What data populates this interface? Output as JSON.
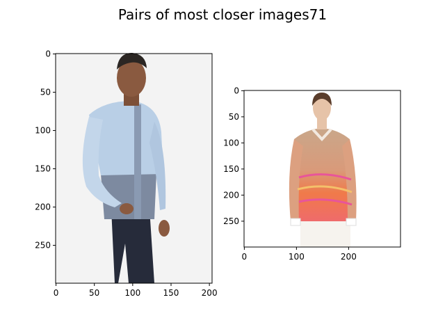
{
  "title": "Pairs of most closer images71",
  "chart_data": [
    {
      "type": "image",
      "image_size": [
        204,
        300
      ],
      "xlim": [
        -0.5,
        203.5
      ],
      "ylim": [
        299.5,
        -0.5
      ],
      "xticks": [
        0,
        50,
        100,
        150,
        200
      ],
      "yticks": [
        0,
        50,
        100,
        150,
        200,
        250
      ],
      "xtick_labels": [
        "0",
        "50",
        "100",
        "150",
        "200"
      ],
      "ytick_labels": [
        "0",
        "50",
        "100",
        "150",
        "200",
        "250"
      ],
      "content": "man in light blue and grey button-down shirt, dark jeans, white background",
      "colors": {
        "background": "#f2f2f2",
        "shirt_top": "#b9cfe6",
        "shirt_bottom": "#7d8aa0",
        "jeans": "#262b3a",
        "skin": "#8a5a40",
        "hair": "#2b2623"
      }
    },
    {
      "type": "image",
      "image_size": [
        300,
        300
      ],
      "xlim": [
        -0.5,
        299.5
      ],
      "ylim": [
        299.5,
        -0.5
      ],
      "xticks": [
        0,
        100,
        200
      ],
      "yticks": [
        0,
        50,
        100,
        150,
        200,
        250
      ],
      "xtick_labels": [
        "0",
        "100",
        "200"
      ],
      "ytick_labels": [
        "0",
        "50",
        "100",
        "150",
        "200",
        "250"
      ],
      "content": "woman in printed orange-pink silk blouse, white pants, white background",
      "colors": {
        "background": "#ffffff",
        "blouse_top": "#c9a78a",
        "blouse_bottom": "#f07a4a",
        "accent": "#e8559a",
        "skin": "#e6c3a8",
        "hair": "#5a3d2b"
      }
    }
  ]
}
